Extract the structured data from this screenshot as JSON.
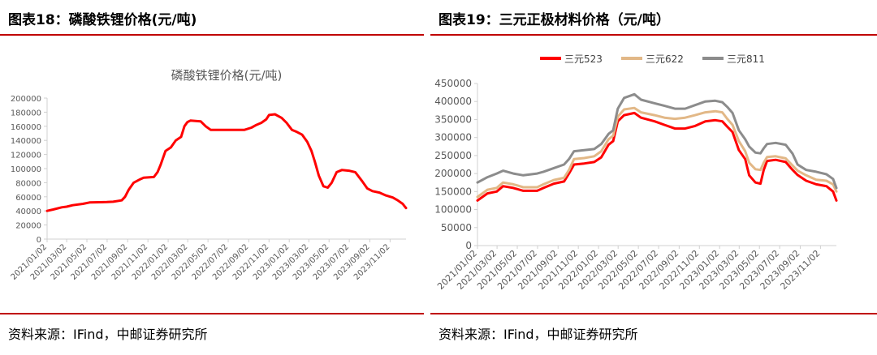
{
  "left": {
    "figure_title": "图表18：磷酸铁锂价格(元/吨)",
    "source": "资料来源：IFind，中邮证券研究所"
  },
  "right": {
    "figure_title": "图表19：三元正极材料价格（元/吨）",
    "source": "资料来源：IFind，中邮证券研究所"
  },
  "colors": {
    "rule": "#c00000",
    "lfp": "#ff0000",
    "ncm523": "#ff0000",
    "ncm622": "#e2b887",
    "ncm811": "#8c8c8c",
    "axis": "#d0d0d0"
  },
  "chart_data": [
    {
      "type": "line",
      "title": "磷酸铁锂价格(元/吨)",
      "xlabel": "",
      "ylabel": "",
      "ylim": [
        0,
        200000
      ],
      "yticks": [
        0,
        20000,
        40000,
        60000,
        80000,
        100000,
        120000,
        140000,
        160000,
        180000,
        200000
      ],
      "xlim": [
        "2021-01-02",
        "2023-12-20"
      ],
      "xticks": [
        "2021/01/02",
        "2021/03/02",
        "2021/05/02",
        "2021/07/02",
        "2021/09/02",
        "2021/11/02",
        "2022/01/02",
        "2022/03/02",
        "2022/05/02",
        "2022/07/02",
        "2022/09/02",
        "2022/11/02",
        "2023/01/02",
        "2023/03/02",
        "2023/05/02",
        "2023/07/02",
        "2023/09/02",
        "2023/11/02"
      ],
      "grid": false,
      "legend": "none",
      "series": [
        {
          "points": [
            [
              "2021-01-02",
              40000
            ],
            [
              "2021-01-20",
              42000
            ],
            [
              "2021-02-15",
              45000
            ],
            [
              "2021-03-02",
              46000
            ],
            [
              "2021-03-20",
              48000
            ],
            [
              "2021-04-20",
              50000
            ],
            [
              "2021-05-10",
              52000
            ],
            [
              "2021-07-01",
              52500
            ],
            [
              "2021-07-20",
              53000
            ],
            [
              "2021-08-15",
              55000
            ],
            [
              "2021-08-25",
              60000
            ],
            [
              "2021-09-05",
              70000
            ],
            [
              "2021-09-20",
              80000
            ],
            [
              "2021-10-10",
              85000
            ],
            [
              "2021-10-20",
              87000
            ],
            [
              "2021-11-20",
              88000
            ],
            [
              "2021-12-01",
              95000
            ],
            [
              "2021-12-10",
              105000
            ],
            [
              "2021-12-25",
              125000
            ],
            [
              "2022-01-10",
              130000
            ],
            [
              "2022-01-25",
              140000
            ],
            [
              "2022-02-10",
              145000
            ],
            [
              "2022-02-20",
              160000
            ],
            [
              "2022-03-01",
              166000
            ],
            [
              "2022-03-10",
              168000
            ],
            [
              "2022-04-10",
              167000
            ],
            [
              "2022-04-25",
              160000
            ],
            [
              "2022-05-10",
              155000
            ],
            [
              "2022-08-20",
              155000
            ],
            [
              "2022-09-10",
              158000
            ],
            [
              "2022-09-25",
              162000
            ],
            [
              "2022-10-10",
              165000
            ],
            [
              "2022-10-25",
              170000
            ],
            [
              "2022-11-02",
              176000
            ],
            [
              "2022-11-20",
              177000
            ],
            [
              "2022-12-10",
              172000
            ],
            [
              "2022-12-25",
              165000
            ],
            [
              "2023-01-10",
              155000
            ],
            [
              "2023-01-25",
              152000
            ],
            [
              "2023-02-10",
              148000
            ],
            [
              "2023-02-25",
              138000
            ],
            [
              "2023-03-10",
              125000
            ],
            [
              "2023-03-20",
              110000
            ],
            [
              "2023-04-01",
              90000
            ],
            [
              "2023-04-15",
              75000
            ],
            [
              "2023-04-28",
              73000
            ],
            [
              "2023-05-10",
              80000
            ],
            [
              "2023-05-25",
              95000
            ],
            [
              "2023-06-10",
              98000
            ],
            [
              "2023-07-01",
              97000
            ],
            [
              "2023-07-20",
              95000
            ],
            [
              "2023-08-10",
              82000
            ],
            [
              "2023-08-25",
              72000
            ],
            [
              "2023-09-10",
              68000
            ],
            [
              "2023-10-01",
              66000
            ],
            [
              "2023-10-20",
              62000
            ],
            [
              "2023-11-10",
              59000
            ],
            [
              "2023-11-25",
              55000
            ],
            [
              "2023-12-10",
              50000
            ],
            [
              "2023-12-20",
              44000
            ]
          ]
        }
      ]
    },
    {
      "type": "line",
      "title": "",
      "xlabel": "",
      "ylabel": "",
      "ylim": [
        0,
        450000
      ],
      "yticks": [
        0,
        50000,
        100000,
        150000,
        200000,
        250000,
        300000,
        350000,
        400000,
        450000
      ],
      "xlim": [
        "2021-01-02",
        "2023-12-20"
      ],
      "xticks": [
        "2021/01/02",
        "2021/03/02",
        "2021/05/02",
        "2021/07/02",
        "2021/09/02",
        "2021/11/02",
        "2022/01/02",
        "2022/03/02",
        "2022/05/02",
        "2022/07/02",
        "2022/09/02",
        "2022/11/02",
        "2023/01/02",
        "2023/03/02",
        "2023/05/02",
        "2023/07/02",
        "2023/09/02",
        "2023/11/02"
      ],
      "grid": false,
      "legend": "top",
      "series": [
        {
          "name": "三元523",
          "points": [
            [
              "2021-01-02",
              125000
            ],
            [
              "2021-02-01",
              145000
            ],
            [
              "2021-03-01",
              150000
            ],
            [
              "2021-03-20",
              165000
            ],
            [
              "2021-04-20",
              160000
            ],
            [
              "2021-05-20",
              152000
            ],
            [
              "2021-07-01",
              152000
            ],
            [
              "2021-07-20",
              160000
            ],
            [
              "2021-08-20",
              172000
            ],
            [
              "2021-09-20",
              178000
            ],
            [
              "2021-10-05",
              200000
            ],
            [
              "2021-10-20",
              225000
            ],
            [
              "2021-11-20",
              228000
            ],
            [
              "2021-12-20",
              232000
            ],
            [
              "2022-01-10",
              245000
            ],
            [
              "2022-02-01",
              280000
            ],
            [
              "2022-02-15",
              290000
            ],
            [
              "2022-03-01",
              345000
            ],
            [
              "2022-03-20",
              362000
            ],
            [
              "2022-04-20",
              368000
            ],
            [
              "2022-05-10",
              355000
            ],
            [
              "2022-06-20",
              345000
            ],
            [
              "2022-07-20",
              335000
            ],
            [
              "2022-08-20",
              325000
            ],
            [
              "2022-09-20",
              325000
            ],
            [
              "2022-10-20",
              332000
            ],
            [
              "2022-11-20",
              345000
            ],
            [
              "2022-12-20",
              348000
            ],
            [
              "2023-01-10",
              345000
            ],
            [
              "2023-01-25",
              330000
            ],
            [
              "2023-02-10",
              315000
            ],
            [
              "2023-03-01",
              265000
            ],
            [
              "2023-03-20",
              240000
            ],
            [
              "2023-04-01",
              195000
            ],
            [
              "2023-04-20",
              175000
            ],
            [
              "2023-05-05",
              172000
            ],
            [
              "2023-05-15",
              210000
            ],
            [
              "2023-05-25",
              235000
            ],
            [
              "2023-06-20",
              238000
            ],
            [
              "2023-07-20",
              232000
            ],
            [
              "2023-08-10",
              210000
            ],
            [
              "2023-08-25",
              196000
            ],
            [
              "2023-09-20",
              180000
            ],
            [
              "2023-10-20",
              170000
            ],
            [
              "2023-11-20",
              165000
            ],
            [
              "2023-12-10",
              150000
            ],
            [
              "2023-12-20",
              125000
            ]
          ]
        },
        {
          "name": "三元622",
          "points": [
            [
              "2021-01-02",
              135000
            ],
            [
              "2021-02-01",
              155000
            ],
            [
              "2021-03-01",
              160000
            ],
            [
              "2021-03-20",
              175000
            ],
            [
              "2021-04-20",
              170000
            ],
            [
              "2021-05-20",
              162000
            ],
            [
              "2021-07-01",
              162000
            ],
            [
              "2021-07-20",
              170000
            ],
            [
              "2021-08-20",
              182000
            ],
            [
              "2021-09-20",
              188000
            ],
            [
              "2021-10-05",
              210000
            ],
            [
              "2021-10-20",
              240000
            ],
            [
              "2021-11-20",
              243000
            ],
            [
              "2021-12-20",
              248000
            ],
            [
              "2022-01-10",
              262000
            ],
            [
              "2022-02-01",
              295000
            ],
            [
              "2022-02-15",
              305000
            ],
            [
              "2022-03-01",
              358000
            ],
            [
              "2022-03-20",
              378000
            ],
            [
              "2022-04-20",
              382000
            ],
            [
              "2022-05-10",
              370000
            ],
            [
              "2022-06-20",
              362000
            ],
            [
              "2022-07-20",
              355000
            ],
            [
              "2022-08-20",
              352000
            ],
            [
              "2022-09-20",
              355000
            ],
            [
              "2022-10-20",
              362000
            ],
            [
              "2022-11-20",
              370000
            ],
            [
              "2022-12-20",
              373000
            ],
            [
              "2023-01-10",
              370000
            ],
            [
              "2023-01-25",
              352000
            ],
            [
              "2023-02-10",
              335000
            ],
            [
              "2023-03-01",
              290000
            ],
            [
              "2023-03-20",
              262000
            ],
            [
              "2023-04-01",
              230000
            ],
            [
              "2023-04-20",
              212000
            ],
            [
              "2023-05-05",
              210000
            ],
            [
              "2023-05-15",
              230000
            ],
            [
              "2023-05-25",
              246000
            ],
            [
              "2023-06-20",
              248000
            ],
            [
              "2023-07-20",
              242000
            ],
            [
              "2023-08-10",
              222000
            ],
            [
              "2023-08-25",
              208000
            ],
            [
              "2023-09-20",
              195000
            ],
            [
              "2023-10-20",
              183000
            ],
            [
              "2023-11-20",
              180000
            ],
            [
              "2023-12-10",
              170000
            ],
            [
              "2023-12-20",
              150000
            ]
          ]
        },
        {
          "name": "三元811",
          "points": [
            [
              "2021-01-02",
              175000
            ],
            [
              "2021-02-01",
              190000
            ],
            [
              "2021-03-01",
              200000
            ],
            [
              "2021-03-20",
              208000
            ],
            [
              "2021-04-20",
              200000
            ],
            [
              "2021-05-20",
              195000
            ],
            [
              "2021-07-01",
              200000
            ],
            [
              "2021-07-20",
              205000
            ],
            [
              "2021-08-20",
              215000
            ],
            [
              "2021-09-20",
              225000
            ],
            [
              "2021-10-05",
              240000
            ],
            [
              "2021-10-20",
              262000
            ],
            [
              "2021-11-20",
              265000
            ],
            [
              "2021-12-20",
              268000
            ],
            [
              "2022-01-10",
              282000
            ],
            [
              "2022-02-01",
              310000
            ],
            [
              "2022-02-15",
              320000
            ],
            [
              "2022-03-01",
              380000
            ],
            [
              "2022-03-20",
              410000
            ],
            [
              "2022-04-20",
              420000
            ],
            [
              "2022-05-10",
              405000
            ],
            [
              "2022-06-20",
              395000
            ],
            [
              "2022-07-20",
              388000
            ],
            [
              "2022-08-20",
              380000
            ],
            [
              "2022-09-20",
              380000
            ],
            [
              "2022-10-20",
              390000
            ],
            [
              "2022-11-20",
              400000
            ],
            [
              "2022-12-20",
              402000
            ],
            [
              "2023-01-10",
              398000
            ],
            [
              "2023-01-25",
              385000
            ],
            [
              "2023-02-10",
              368000
            ],
            [
              "2023-03-01",
              320000
            ],
            [
              "2023-03-20",
              295000
            ],
            [
              "2023-04-01",
              275000
            ],
            [
              "2023-04-20",
              258000
            ],
            [
              "2023-05-05",
              256000
            ],
            [
              "2023-05-15",
              270000
            ],
            [
              "2023-05-25",
              282000
            ],
            [
              "2023-06-20",
              285000
            ],
            [
              "2023-07-20",
              280000
            ],
            [
              "2023-08-10",
              255000
            ],
            [
              "2023-08-25",
              225000
            ],
            [
              "2023-09-20",
              210000
            ],
            [
              "2023-10-20",
              205000
            ],
            [
              "2023-11-20",
              198000
            ],
            [
              "2023-12-10",
              185000
            ],
            [
              "2023-12-20",
              160000
            ]
          ]
        }
      ]
    }
  ]
}
